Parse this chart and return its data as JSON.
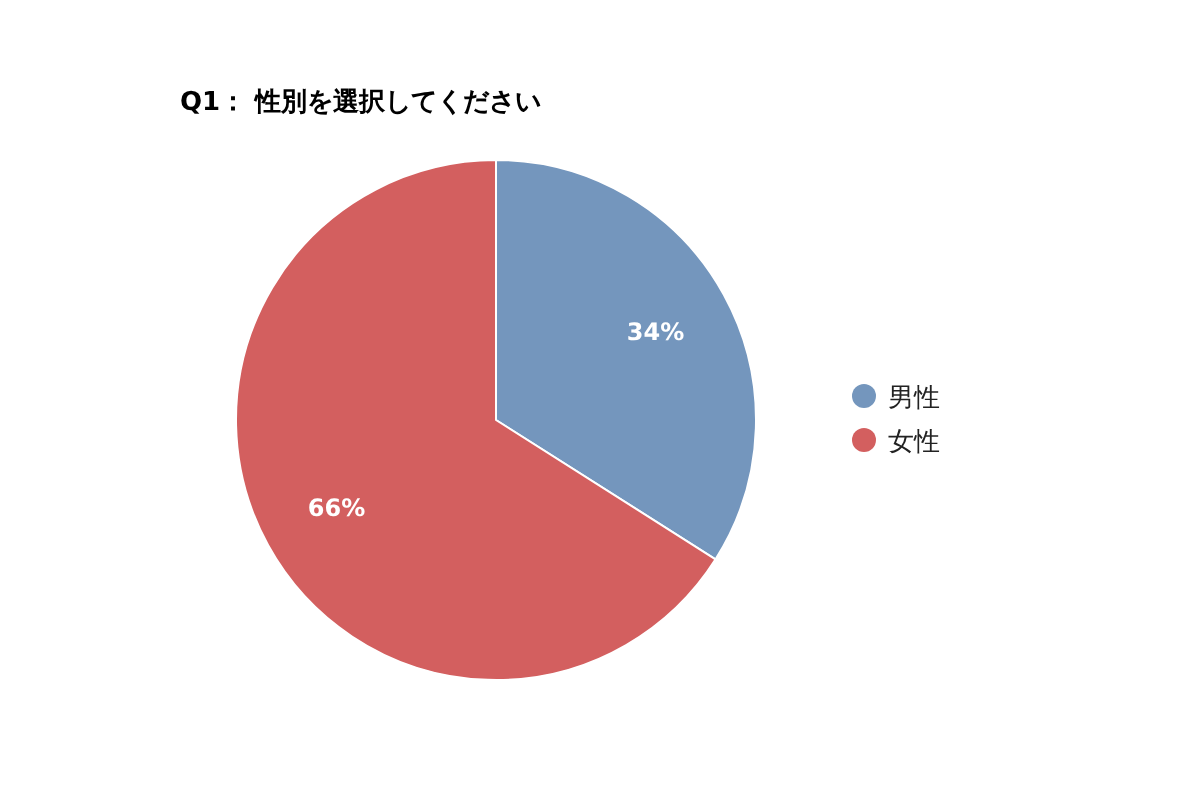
{
  "chart_data": {
    "type": "pie",
    "title": "Q1： 性別を選択してください",
    "categories": [
      "男性",
      "女性"
    ],
    "values": [
      34,
      66
    ],
    "colors": [
      "#7496bd",
      "#d35f5f"
    ],
    "value_labels": [
      "34%",
      "66%"
    ],
    "legend": "right"
  }
}
